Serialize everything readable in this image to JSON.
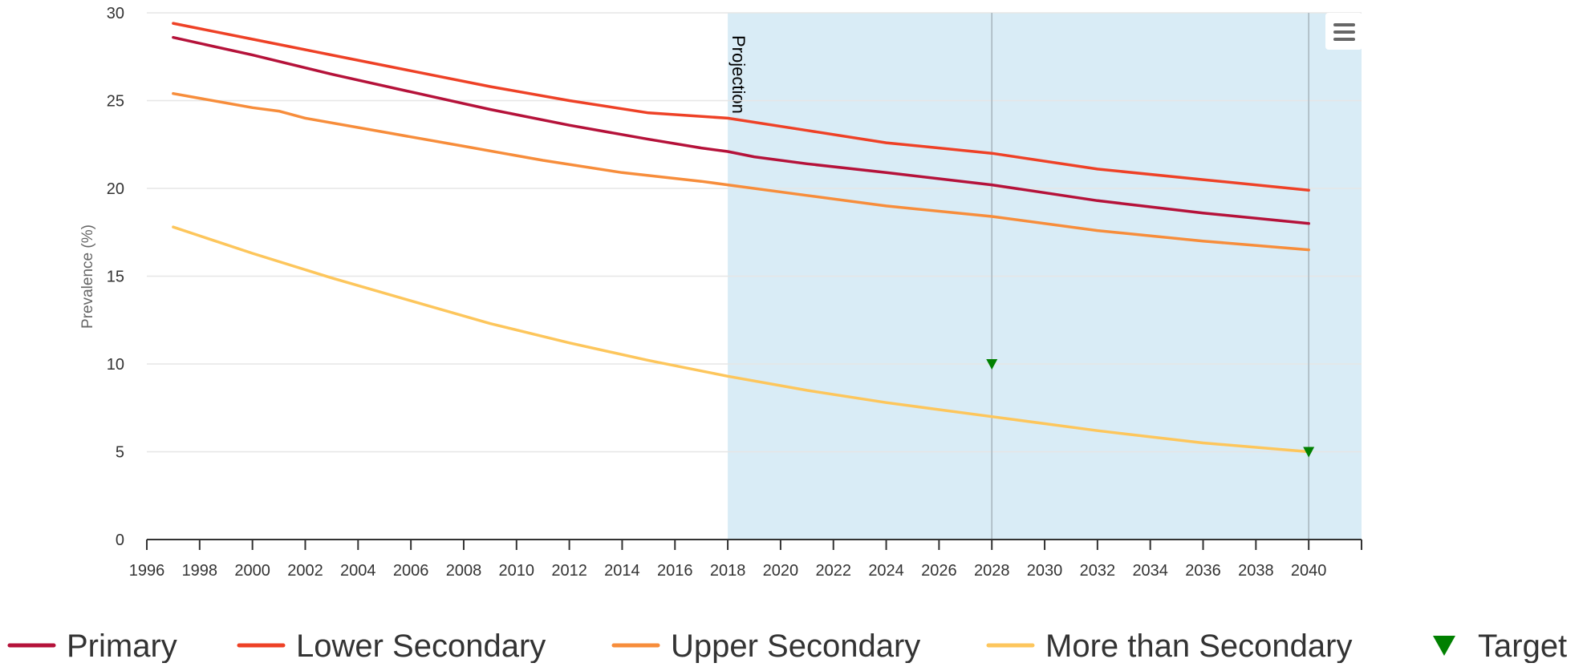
{
  "chart_data": {
    "type": "line",
    "title": "",
    "xlabel": "",
    "ylabel": "Prevalence (%)",
    "xlim": [
      1996,
      2042
    ],
    "ylim": [
      0,
      30
    ],
    "x_ticks": [
      1996,
      1998,
      2000,
      2002,
      2004,
      2006,
      2008,
      2010,
      2012,
      2014,
      2016,
      2018,
      2020,
      2022,
      2024,
      2026,
      2028,
      2030,
      2032,
      2034,
      2036,
      2038,
      2040
    ],
    "y_ticks": [
      0,
      5,
      10,
      15,
      20,
      25,
      30
    ],
    "grid": "horizontal",
    "legend_position": "bottom",
    "plot_band": {
      "from": 2018,
      "to": 2042,
      "label": "Projection",
      "color": "#d9ecf6"
    },
    "plot_lines_x": [
      2028,
      2040
    ],
    "colors": {
      "Primary": "#b5123a",
      "Lower Secondary": "#ee4126",
      "Upper Secondary": "#f78d3b",
      "More than Secondary": "#fdc65c",
      "Target": "#008000"
    },
    "series": [
      {
        "name": "Primary",
        "color": "#b5123a",
        "x": [
          1997,
          2000,
          2003,
          2006,
          2009,
          2012,
          2015,
          2017,
          2018,
          2019,
          2021,
          2024,
          2028,
          2032,
          2036,
          2040
        ],
        "values": [
          28.6,
          27.6,
          26.5,
          25.5,
          24.5,
          23.6,
          22.8,
          22.3,
          22.1,
          21.8,
          21.4,
          20.9,
          20.2,
          19.3,
          18.6,
          18.0
        ]
      },
      {
        "name": "Lower Secondary",
        "color": "#ee4126",
        "x": [
          1997,
          2000,
          2003,
          2006,
          2009,
          2012,
          2015,
          2018,
          2021,
          2024,
          2028,
          2032,
          2036,
          2040
        ],
        "values": [
          29.4,
          28.5,
          27.6,
          26.7,
          25.8,
          25.0,
          24.3,
          24.0,
          23.3,
          22.6,
          22.0,
          21.1,
          20.5,
          19.9
        ]
      },
      {
        "name": "Upper Secondary",
        "color": "#f78d3b",
        "x": [
          1997,
          2000,
          2001,
          2002,
          2005,
          2008,
          2011,
          2014,
          2017,
          2018,
          2021,
          2024,
          2028,
          2032,
          2036,
          2040
        ],
        "values": [
          25.4,
          24.6,
          24.4,
          24.0,
          23.2,
          22.4,
          21.6,
          20.9,
          20.4,
          20.2,
          19.6,
          19.0,
          18.4,
          17.6,
          17.0,
          16.5
        ]
      },
      {
        "name": "More than Secondary",
        "color": "#fdc65c",
        "x": [
          1997,
          2000,
          2003,
          2006,
          2009,
          2012,
          2015,
          2018,
          2021,
          2024,
          2028,
          2032,
          2036,
          2040
        ],
        "values": [
          17.8,
          16.3,
          14.9,
          13.6,
          12.3,
          11.2,
          10.2,
          9.3,
          8.5,
          7.8,
          7.0,
          6.2,
          5.5,
          5.0
        ]
      }
    ],
    "targets": {
      "name": "Target",
      "color": "#008000",
      "points": [
        {
          "x": 2028,
          "y": 10.0
        },
        {
          "x": 2040,
          "y": 5.0
        }
      ]
    }
  },
  "menu": {
    "icon": "hamburger-menu-icon"
  }
}
